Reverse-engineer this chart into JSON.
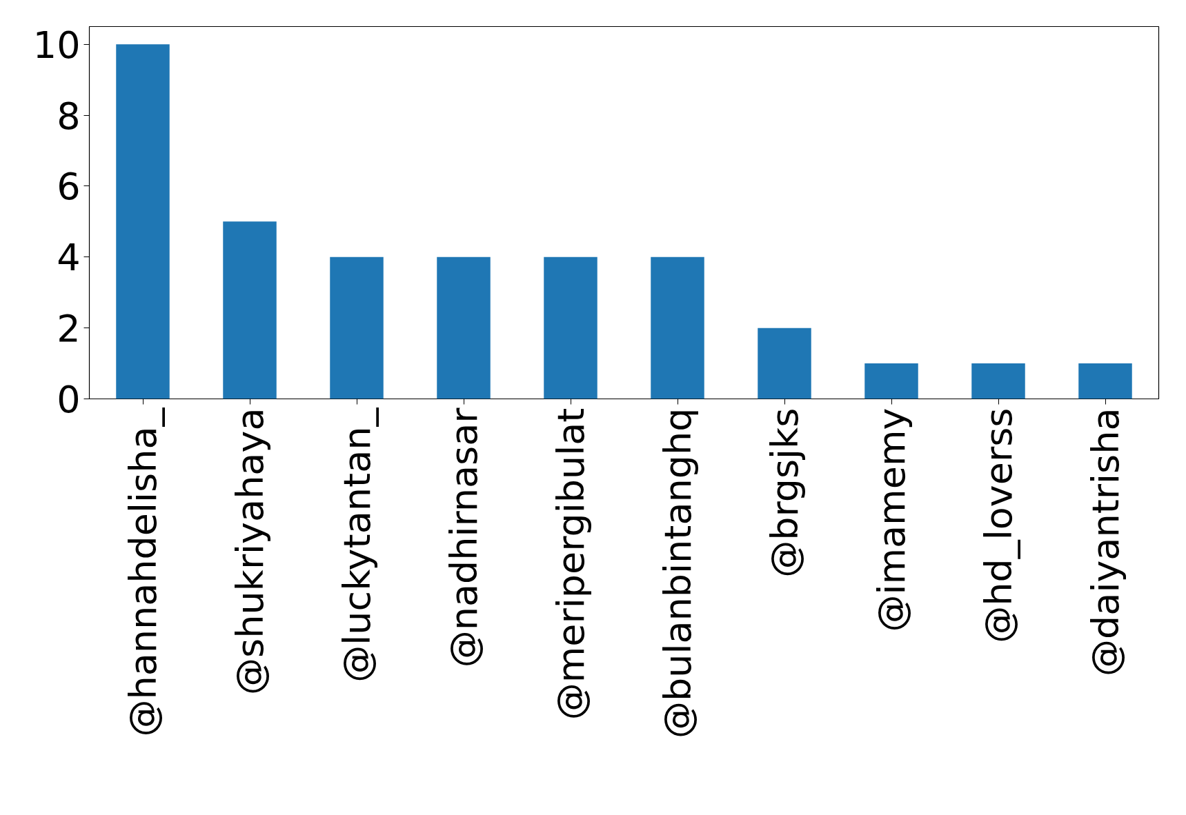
{
  "chart_data": {
    "type": "bar",
    "categories": [
      "@hannahdelisha_",
      "@shukriyahaya",
      "@luckytantan_",
      "@nadhirnasar",
      "@meripergibulat",
      "@bulanbintanghq",
      "@brgsjks",
      "@imamemy",
      "@hd_loverss",
      "@daiyantrisha"
    ],
    "values": [
      10,
      5,
      4,
      4,
      4,
      4,
      2,
      1,
      1,
      1
    ],
    "color": "#1f77b4",
    "ylim": [
      0,
      10.5
    ],
    "yticks": [
      0,
      2,
      4,
      6,
      8,
      10
    ],
    "grid": false
  }
}
